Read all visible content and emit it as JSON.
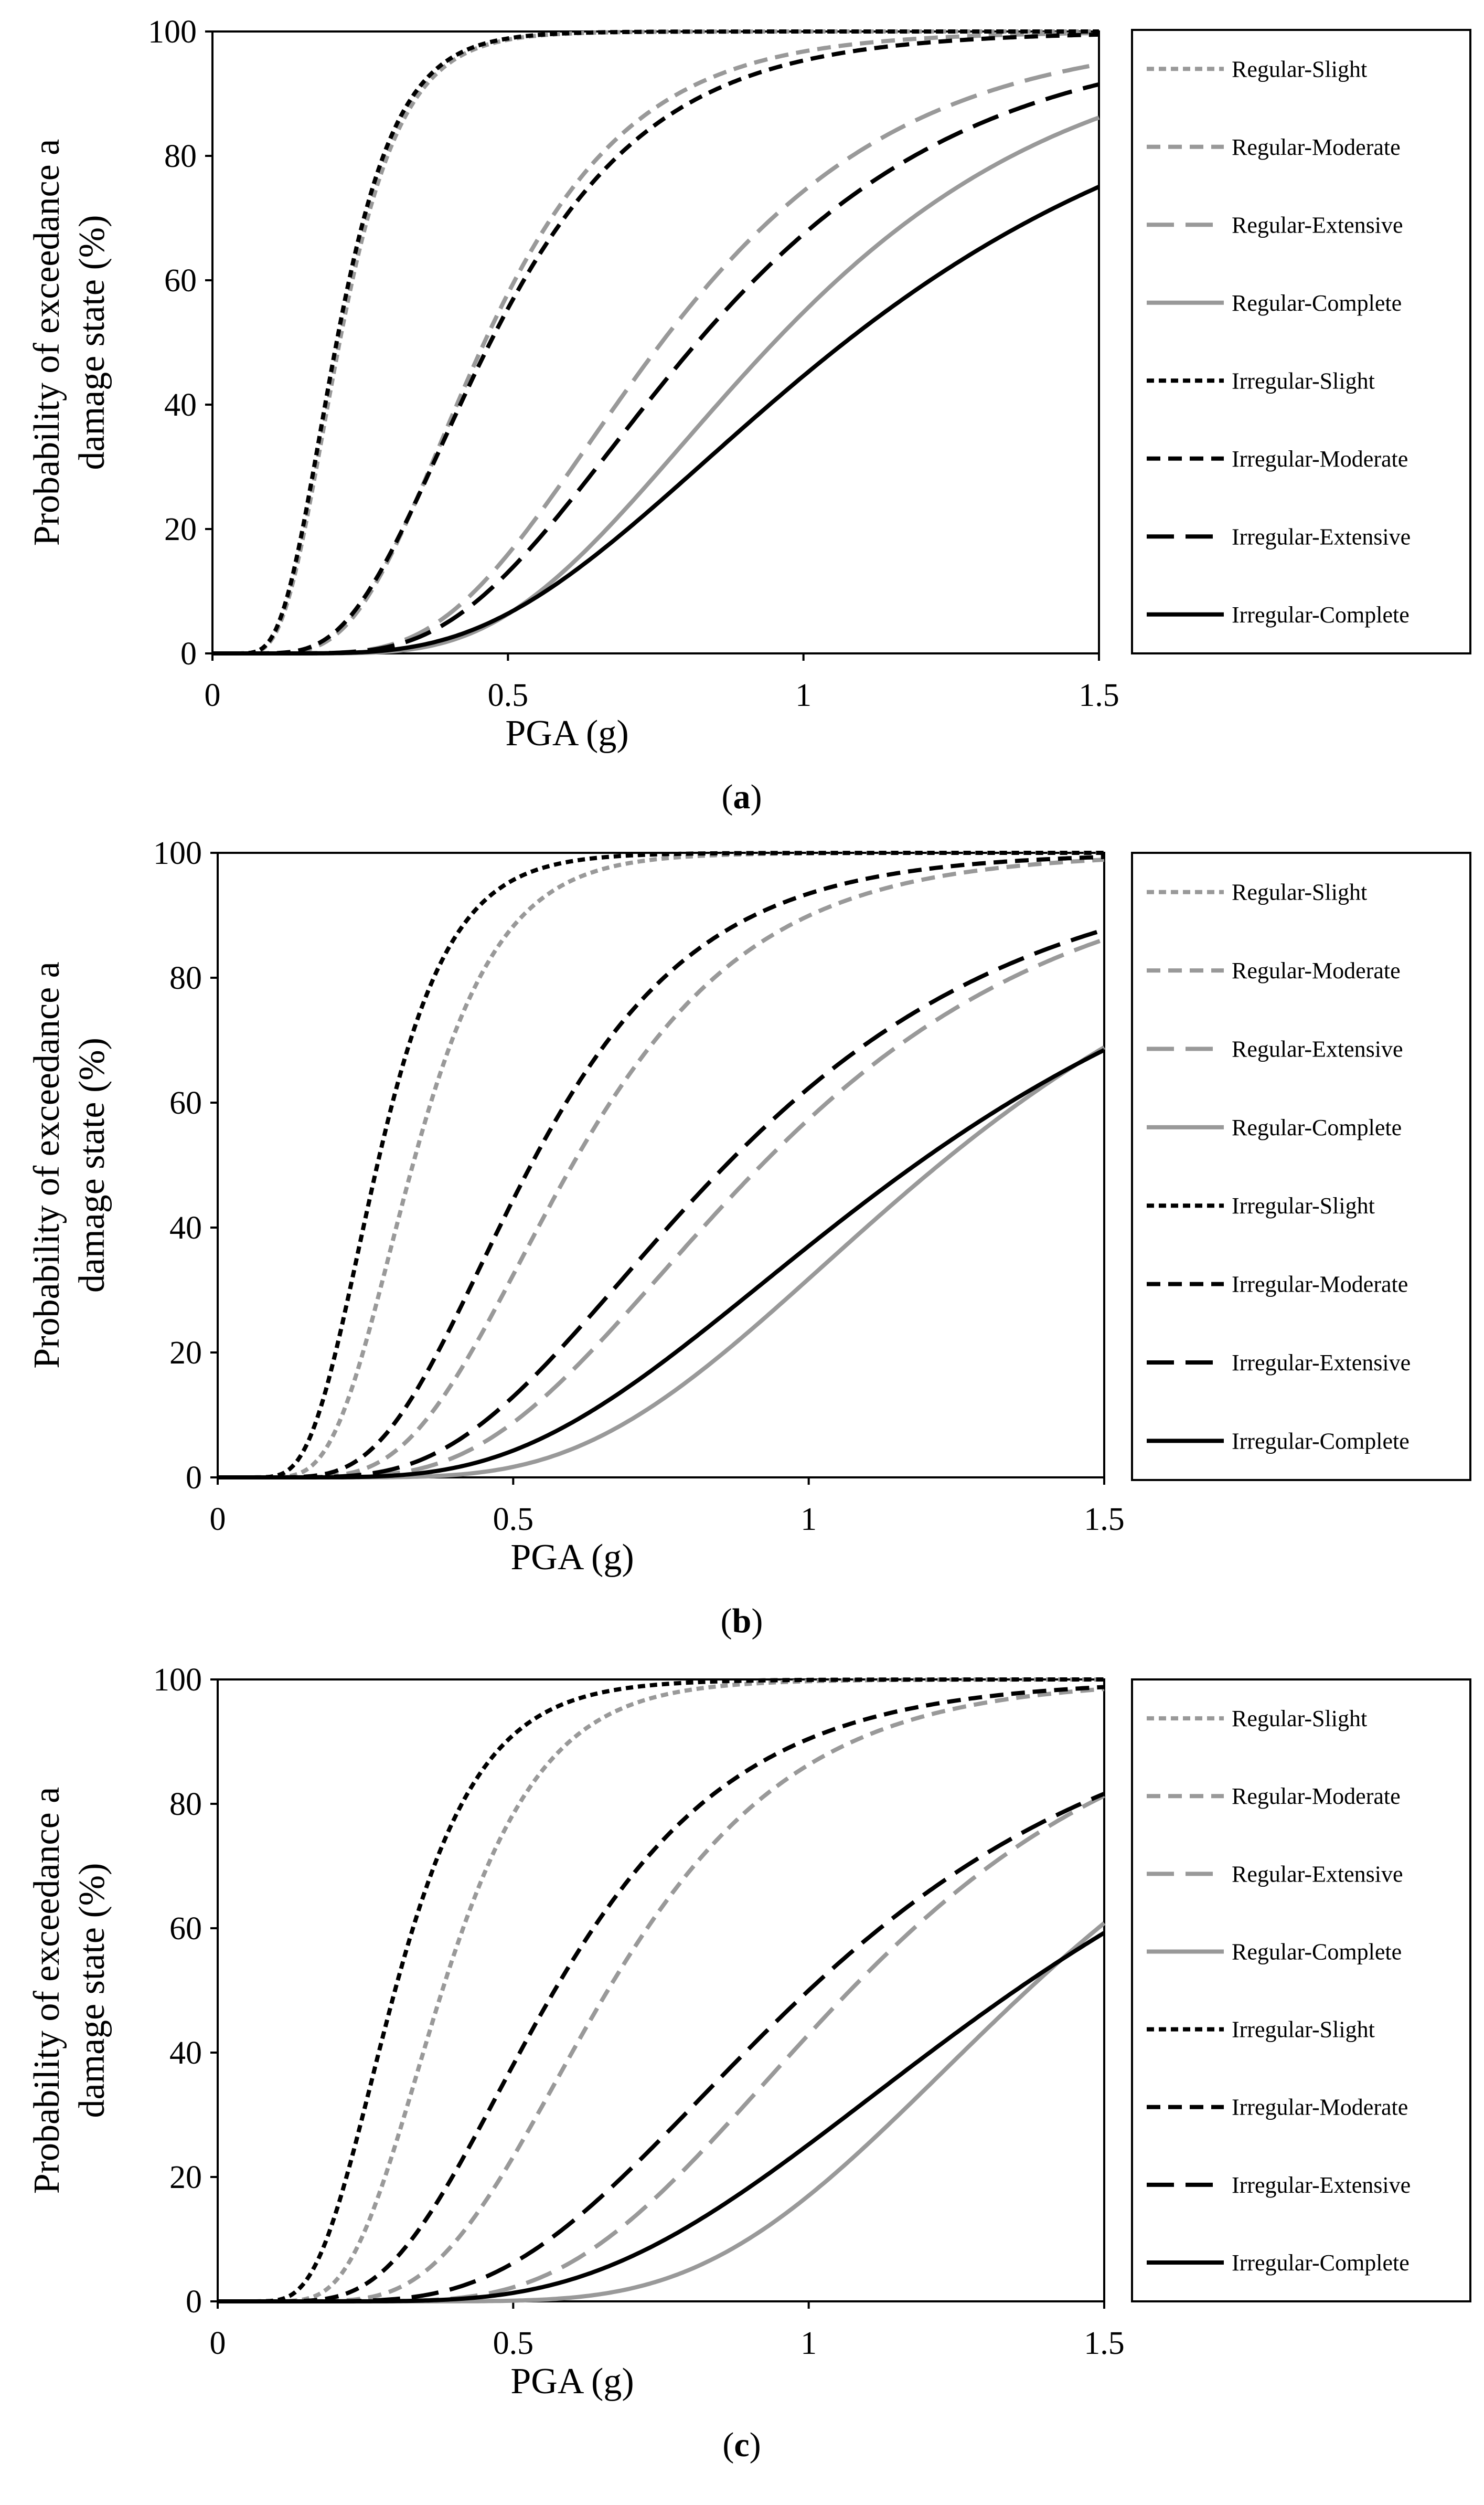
{
  "colors": {
    "regular": "#999999",
    "irregular": "#000000",
    "background": "#ffffff"
  },
  "styles": [
    {
      "name": "Regular-Slight",
      "color": "#999999",
      "dash": "short"
    },
    {
      "name": "Regular-Moderate",
      "color": "#999999",
      "dash": "medium"
    },
    {
      "name": "Regular-Extensive",
      "color": "#999999",
      "dash": "long"
    },
    {
      "name": "Regular-Complete",
      "color": "#999999",
      "dash": "solid"
    },
    {
      "name": "Irregular-Slight",
      "color": "#000000",
      "dash": "short"
    },
    {
      "name": "Irregular-Moderate",
      "color": "#000000",
      "dash": "medium"
    },
    {
      "name": "Irregular-Extensive",
      "color": "#000000",
      "dash": "long"
    },
    {
      "name": "Irregular-Complete",
      "color": "#000000",
      "dash": "solid"
    }
  ],
  "chart_data": [
    {
      "type": "line",
      "panel": "a",
      "caption_letter": "a",
      "xlabel": "PGA (g)",
      "ylabel_line1": "Probability of exceedance a",
      "ylabel_line2": "damage state (%)",
      "xlim": [
        0,
        1.5
      ],
      "ylim": [
        0,
        100
      ],
      "xticks": [
        "0",
        "0.5",
        "1",
        "1.5"
      ],
      "yticks": [
        "0",
        "20",
        "40",
        "60",
        "80",
        "100"
      ],
      "legend_position": "right",
      "series": [
        {
          "name": "Regular-Slight",
          "median_g": 0.215,
          "beta": 0.38
        },
        {
          "name": "Regular-Moderate",
          "median_g": 0.46,
          "beta": 0.42
        },
        {
          "name": "Regular-Extensive",
          "median_g": 0.76,
          "beta": 0.42
        },
        {
          "name": "Regular-Complete",
          "median_g": 0.95,
          "beta": 0.42
        },
        {
          "name": "Irregular-Slight",
          "median_g": 0.21,
          "beta": 0.38
        },
        {
          "name": "Irregular-Moderate",
          "median_g": 0.47,
          "beta": 0.45
        },
        {
          "name": "Irregular-Extensive",
          "median_g": 0.82,
          "beta": 0.44
        },
        {
          "name": "Irregular-Complete",
          "median_g": 1.07,
          "beta": 0.5
        }
      ]
    },
    {
      "type": "line",
      "panel": "b",
      "caption_letter": "b",
      "xlabel": "PGA (g)",
      "ylabel_line1": "Probability of exceedance a",
      "ylabel_line2": "damage state (%)",
      "xlim": [
        0,
        1.5
      ],
      "ylim": [
        0,
        100
      ],
      "xticks": [
        "0",
        "0.5",
        "1",
        "1.5"
      ],
      "yticks": [
        "0",
        "20",
        "40",
        "60",
        "80",
        "100"
      ],
      "legend_position": "right",
      "series": [
        {
          "name": "Regular-Slight",
          "median_g": 0.33,
          "beta": 0.35
        },
        {
          "name": "Regular-Moderate",
          "median_g": 0.6,
          "beta": 0.4
        },
        {
          "name": "Regular-Extensive",
          "median_g": 0.92,
          "beta": 0.45
        },
        {
          "name": "Regular-Complete",
          "median_g": 1.22,
          "beta": 0.42
        },
        {
          "name": "Irregular-Slight",
          "median_g": 0.27,
          "beta": 0.36
        },
        {
          "name": "Irregular-Moderate",
          "median_g": 0.53,
          "beta": 0.42
        },
        {
          "name": "Irregular-Extensive",
          "median_g": 0.86,
          "beta": 0.48
        },
        {
          "name": "Irregular-Complete",
          "median_g": 1.18,
          "beta": 0.5
        }
      ]
    },
    {
      "type": "line",
      "panel": "c",
      "caption_letter": "c",
      "xlabel": "PGA (g)",
      "ylabel_line1": "Probability of exceedance a",
      "ylabel_line2": "damage state (%)",
      "xlim": [
        0,
        1.5
      ],
      "ylim": [
        0,
        100
      ],
      "xticks": [
        "0",
        "0.5",
        "1",
        "1.5"
      ],
      "yticks": [
        "0",
        "20",
        "40",
        "60",
        "80",
        "100"
      ],
      "legend_position": "right",
      "series": [
        {
          "name": "Regular-Slight",
          "median_g": 0.38,
          "beta": 0.35
        },
        {
          "name": "Regular-Moderate",
          "median_g": 0.66,
          "beta": 0.38
        },
        {
          "name": "Regular-Extensive",
          "median_g": 1.07,
          "beta": 0.38
        },
        {
          "name": "Regular-Complete",
          "median_g": 1.37,
          "beta": 0.33
        },
        {
          "name": "Irregular-Slight",
          "median_g": 0.3,
          "beta": 0.38
        },
        {
          "name": "Irregular-Moderate",
          "median_g": 0.57,
          "beta": 0.43
        },
        {
          "name": "Irregular-Extensive",
          "median_g": 1.0,
          "beta": 0.45
        },
        {
          "name": "Irregular-Complete",
          "median_g": 1.35,
          "beta": 0.45
        }
      ]
    }
  ]
}
